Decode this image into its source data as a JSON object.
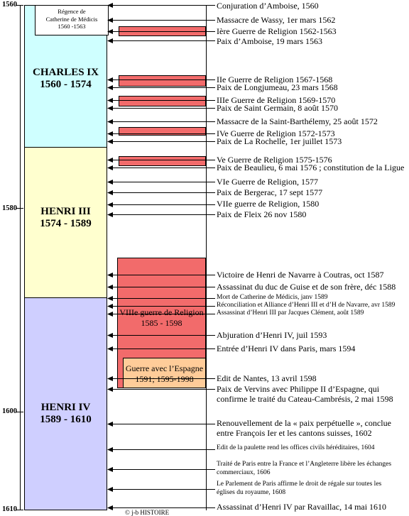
{
  "years": [
    "1560",
    "1580",
    "1600",
    "1610"
  ],
  "reigns": [
    {
      "name": "CHARLES IX",
      "dates": "1560 - 1574",
      "color": "#cfffff"
    },
    {
      "name": "HENRI III",
      "dates": "1574 - 1589",
      "color": "#ffffcf"
    },
    {
      "name": "HENRI IV",
      "dates": "1589 - 1610",
      "color": "#cfcfff"
    }
  ],
  "regence": [
    "Régence de",
    "Catherine de Médicis",
    "1560 -1563"
  ],
  "wars_color": "#f26b6b",
  "war8": {
    "lines": [
      "VIIIe guerre de Religion",
      "1585 - 1598"
    ],
    "color": "#f26b6b"
  },
  "espagne": {
    "lines": [
      "Guerre avec l’Espagne",
      "1591; 1595-1998"
    ],
    "color": "#ffcc99"
  },
  "events": [
    {
      "lines": [
        "Conjuration d’Amboise, 1560"
      ]
    },
    {
      "lines": [
        "Massacre de Wassy, 1er mars 1562"
      ]
    },
    {
      "lines": [
        "Ière Guerre de Religion 1562-1563"
      ]
    },
    {
      "lines": [
        "Paix d’Amboise, 19 mars 1563"
      ]
    },
    {
      "lines": [
        "IIe Guerre de Religion 1567-1568"
      ]
    },
    {
      "lines": [
        "Paix de Longjumeau, 23 mars 1568"
      ]
    },
    {
      "lines": [
        "IIIe Guerre de Religion 1569-1570"
      ]
    },
    {
      "lines": [
        "Paix de Saint Germain, 8 août 1570"
      ]
    },
    {
      "lines": [
        "Massacre de la Saint-Barthélemy, 25 août 1572"
      ]
    },
    {
      "lines": [
        "IVe Guerre de Religion 1572-1573"
      ]
    },
    {
      "lines": [
        "Paix de La Rochelle, 1er juillet 1573"
      ]
    },
    {
      "lines": [
        "Ve Guerre de Religion 1575-1576"
      ]
    },
    {
      "lines": [
        "Paix de Beaulieu, 6 mai 1576 ; constitution de la Ligue"
      ]
    },
    {
      "lines": [
        "VIe Guerre de Religion, 1577"
      ]
    },
    {
      "lines": [
        "Paix de Bergerac, 17 sept 1577"
      ]
    },
    {
      "lines": [
        "VIIe guerre de Religion, 1580"
      ]
    },
    {
      "lines": [
        "Paix de Fleix 26 nov 1580"
      ]
    },
    {
      "lines": [
        "Victoire de Henri de Navarre à Coutras, oct 1587"
      ]
    },
    {
      "lines": [
        "Assassinat du duc de Guise et de son frère, déc 1588"
      ]
    },
    {
      "lines": [
        "Mort de Catherine de Médicis, janv 1589"
      ]
    },
    {
      "lines": [
        "Réconciliation et Alliance d’Henri III et d’H de Navarre, avr 1589"
      ]
    },
    {
      "lines": [
        "Assassinat d’Henri III par Jacques Clément, août 1589"
      ]
    },
    {
      "lines": [
        "Abjuration d’Henri IV, juil 1593"
      ]
    },
    {
      "lines": [
        "Entrée d’Henri IV dans Paris, mars 1594"
      ]
    },
    {
      "lines": [
        "Edit de Nantes, 13 avril 1598"
      ]
    },
    {
      "lines": [
        "Paix de Vervins avec Philippe II d’Espagne, qui",
        "confirme le traité du Cateau-Cambrésis, 2 mai 1598"
      ]
    },
    {
      "lines": [
        "Renouvellement de la « paix perpétuelle », conclue",
        "entre François Ier et les cantons suisses, 1602"
      ]
    },
    {
      "lines": [
        "Edit de la paulette rend les offices civils héréditaires, 1604"
      ]
    },
    {
      "lines": [
        "Traité de Paris entre la France et l’Angleterre libère les échanges",
        "commerciaux, 1606"
      ]
    },
    {
      "lines": [
        "Le Parlement de Paris affirme le droit de régale sur toutes les",
        "églises du royaume, 1608"
      ]
    },
    {
      "lines": [
        "Assassinat d’Henri IV par Ravaillac, 14 mai 1610"
      ]
    }
  ],
  "copyright": "© j-b HISTOIRE"
}
